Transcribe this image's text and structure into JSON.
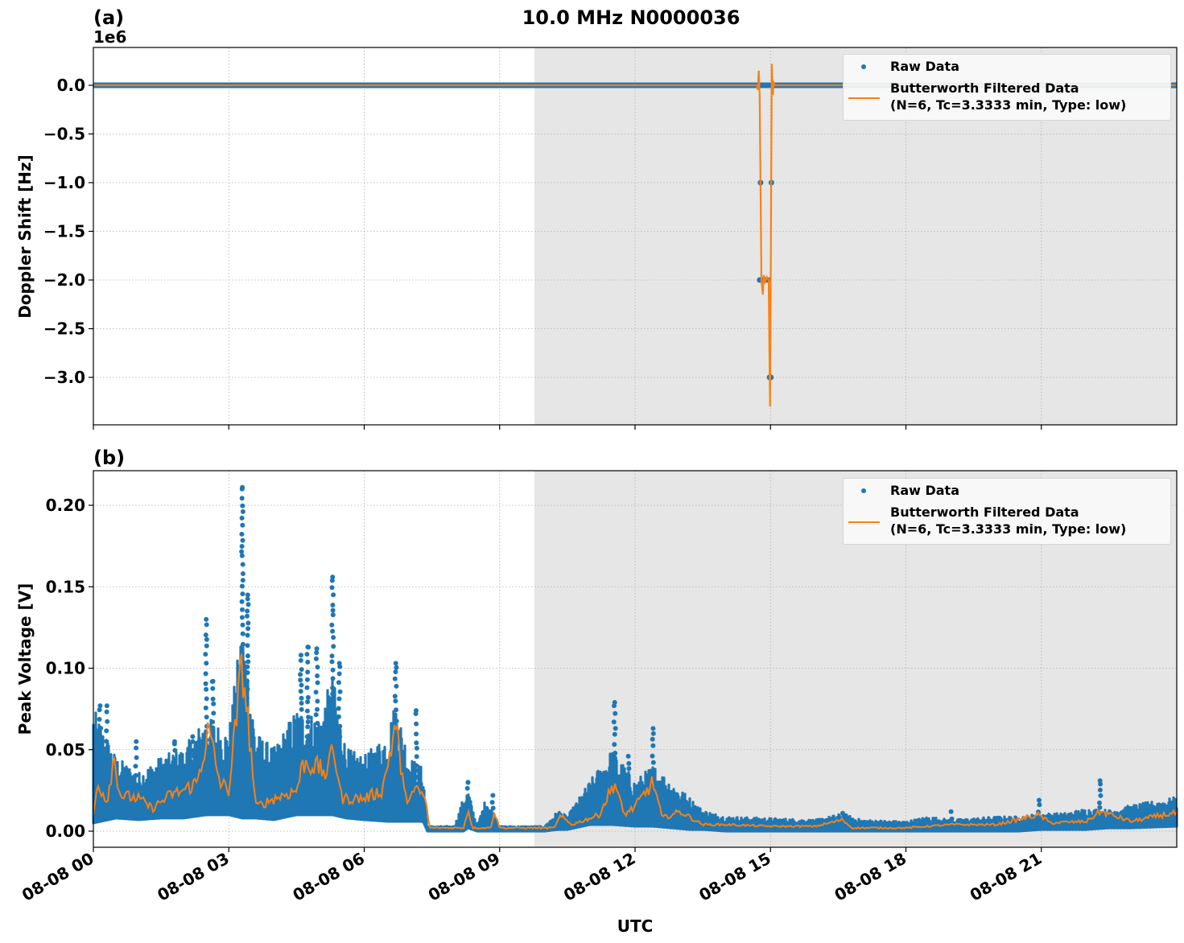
{
  "figure": {
    "title": "10.0 MHz N0000036",
    "xlabel": "UTC",
    "colors": {
      "raw": "#1f77b4",
      "filtered": "#ff7f0e",
      "shade": "#e6e6e6",
      "grid": "#b0b0b0",
      "axes": "#000000"
    }
  },
  "panels": [
    {
      "label": "(a)",
      "offset_text": "1e6",
      "ylabel": "Doppler Shift [Hz]",
      "legend": {
        "raw_label": "Raw Data",
        "filtered_label_line1": "Butterworth Filtered Data",
        "filtered_label_line2": "(N=6, Tc=3.3333 min, Type: low)"
      }
    },
    {
      "label": "(b)",
      "ylabel": "Peak Voltage [V]",
      "legend": {
        "raw_label": "Raw Data",
        "filtered_label_line1": "Butterworth Filtered Data",
        "filtered_label_line2": "(N=6, Tc=3.3333 min, Type: low)"
      }
    }
  ],
  "chart_data": [
    {
      "type": "line",
      "title": "10.0 MHz N0000036",
      "panel_label": "(a)",
      "xlabel": "UTC",
      "ylabel": "Doppler Shift [Hz]",
      "y_scale_offset": "1e6",
      "xlim_hours": [
        0,
        24
      ],
      "ylim": [
        -3.5,
        0.4
      ],
      "x_ticks": [
        "08-08 00",
        "08-08 03",
        "08-08 06",
        "08-08 09",
        "08-08 12",
        "08-08 15",
        "08-08 18",
        "08-08 21"
      ],
      "x_tick_hours": [
        0,
        3,
        6,
        9,
        12,
        15,
        18,
        21
      ],
      "y_ticks": [
        0.0,
        -0.5,
        -1.0,
        -1.5,
        -2.0,
        -2.5,
        -3.0
      ],
      "y_tick_labels": [
        "0.0",
        "−0.5",
        "−1.0",
        "−1.5",
        "−2.0",
        "−2.5",
        "−3.0"
      ],
      "grid": true,
      "shaded_region_hours": [
        9.77,
        24
      ],
      "legend_position": "upper right",
      "series": [
        {
          "name": "Raw Data",
          "style": "scatter",
          "baseline": 0.0,
          "outlier_points": [
            {
              "x": 14.75,
              "y": 0.0
            },
            {
              "x": 15.05,
              "y": 0.0
            },
            {
              "x": 14.78,
              "y": -1.0
            },
            {
              "x": 15.02,
              "y": -1.0
            },
            {
              "x": 14.76,
              "y": -2.0
            },
            {
              "x": 14.82,
              "y": -2.0
            },
            {
              "x": 14.88,
              "y": -2.0
            },
            {
              "x": 14.94,
              "y": -2.0
            },
            {
              "x": 14.98,
              "y": -3.0
            },
            {
              "x": 15.01,
              "y": -3.0
            }
          ]
        },
        {
          "name": "Butterworth Filtered Data (N=6, Tc=3.3333 min, Type: low)",
          "style": "line",
          "baseline": 0.0,
          "excursion_points": [
            {
              "x": 14.7,
              "y": 0.0
            },
            {
              "x": 14.72,
              "y": -0.05
            },
            {
              "x": 14.74,
              "y": 0.15
            },
            {
              "x": 14.76,
              "y": -0.1
            },
            {
              "x": 14.8,
              "y": -2.0
            },
            {
              "x": 14.83,
              "y": -2.15
            },
            {
              "x": 14.85,
              "y": -1.95
            },
            {
              "x": 14.88,
              "y": -2.02
            },
            {
              "x": 14.92,
              "y": -1.97
            },
            {
              "x": 14.96,
              "y": -2.0
            },
            {
              "x": 14.99,
              "y": -3.3
            },
            {
              "x": 15.03,
              "y": 0.22
            },
            {
              "x": 15.05,
              "y": -0.1
            },
            {
              "x": 15.07,
              "y": 0.03
            },
            {
              "x": 15.1,
              "y": 0.0
            }
          ]
        }
      ]
    },
    {
      "type": "line",
      "panel_label": "(b)",
      "xlabel": "UTC",
      "ylabel": "Peak Voltage [V]",
      "xlim_hours": [
        0,
        24
      ],
      "ylim": [
        -0.01,
        0.22
      ],
      "x_ticks": [
        "08-08 00",
        "08-08 03",
        "08-08 06",
        "08-08 09",
        "08-08 12",
        "08-08 15",
        "08-08 18",
        "08-08 21"
      ],
      "x_tick_hours": [
        0,
        3,
        6,
        9,
        12,
        15,
        18,
        21
      ],
      "y_ticks": [
        0.0,
        0.05,
        0.1,
        0.15,
        0.2
      ],
      "y_tick_labels": [
        "0.00",
        "0.05",
        "0.10",
        "0.15",
        "0.20"
      ],
      "grid": true,
      "shaded_region_hours": [
        9.77,
        24
      ],
      "legend_position": "upper right",
      "series": [
        {
          "name": "Raw Data",
          "style": "scatter",
          "envelope_hours": [
            0,
            0.5,
            1.0,
            1.5,
            2.0,
            2.5,
            3.0,
            3.3,
            3.6,
            4.0,
            4.5,
            5.0,
            5.3,
            5.6,
            6.0,
            6.5,
            6.7,
            7.0,
            7.3,
            7.4,
            8.0,
            8.2,
            8.3,
            8.5,
            8.7,
            8.85,
            9.0,
            10.0,
            10.3,
            10.5,
            11.0,
            11.5,
            12.0,
            12.4,
            12.8,
            13.2,
            13.5,
            14.0,
            15.0,
            16.0,
            16.6,
            17.0,
            18.0,
            18.5,
            19.0,
            20.0,
            20.5,
            21.0,
            21.5,
            22.0,
            22.5,
            23.0,
            24.0
          ],
          "envelope_upper": [
            0.075,
            0.045,
            0.035,
            0.045,
            0.05,
            0.07,
            0.06,
            0.13,
            0.06,
            0.05,
            0.075,
            0.07,
            0.095,
            0.05,
            0.045,
            0.06,
            0.08,
            0.045,
            0.038,
            0.002,
            0.002,
            0.02,
            0.025,
            0.002,
            0.02,
            0.012,
            0.002,
            0.002,
            0.012,
            0.008,
            0.03,
            0.05,
            0.03,
            0.04,
            0.03,
            0.02,
            0.012,
            0.008,
            0.007,
            0.006,
            0.01,
            0.006,
            0.005,
            0.008,
            0.006,
            0.008,
            0.008,
            0.01,
            0.01,
            0.013,
            0.012,
            0.015,
            0.02
          ],
          "envelope_lower": [
            0.005,
            0.008,
            0.007,
            0.008,
            0.008,
            0.01,
            0.01,
            0.008,
            0.008,
            0.007,
            0.01,
            0.01,
            0.01,
            0.008,
            0.007,
            0.006,
            0.006,
            0.006,
            0.006,
            0.0,
            0.0,
            0.0,
            0.002,
            0.0,
            0.0,
            0.0,
            0.0,
            0.0,
            0.001,
            0.001,
            0.004,
            0.004,
            0.003,
            0.003,
            0.002,
            0.001,
            0.001,
            0.0,
            0.0,
            0.0,
            0.0,
            0.0,
            0.0,
            0.0,
            0.0,
            0.0,
            0.0,
            0.001,
            0.001,
            0.001,
            0.002,
            0.002,
            0.003
          ],
          "spikes": [
            {
              "x": 0.15,
              "y": 0.077
            },
            {
              "x": 0.3,
              "y": 0.077
            },
            {
              "x": 0.95,
              "y": 0.055
            },
            {
              "x": 1.8,
              "y": 0.055
            },
            {
              "x": 2.2,
              "y": 0.058
            },
            {
              "x": 2.5,
              "y": 0.13
            },
            {
              "x": 2.65,
              "y": 0.092
            },
            {
              "x": 3.1,
              "y": 0.06
            },
            {
              "x": 3.3,
              "y": 0.211
            },
            {
              "x": 3.42,
              "y": 0.145
            },
            {
              "x": 4.6,
              "y": 0.108
            },
            {
              "x": 4.75,
              "y": 0.113
            },
            {
              "x": 4.95,
              "y": 0.112
            },
            {
              "x": 5.3,
              "y": 0.156
            },
            {
              "x": 5.45,
              "y": 0.103
            },
            {
              "x": 6.7,
              "y": 0.103
            },
            {
              "x": 7.15,
              "y": 0.074
            },
            {
              "x": 8.3,
              "y": 0.03
            },
            {
              "x": 8.85,
              "y": 0.022
            },
            {
              "x": 11.55,
              "y": 0.079
            },
            {
              "x": 11.85,
              "y": 0.046
            },
            {
              "x": 12.4,
              "y": 0.063
            },
            {
              "x": 16.6,
              "y": 0.011
            },
            {
              "x": 19.0,
              "y": 0.012
            },
            {
              "x": 20.95,
              "y": 0.019
            },
            {
              "x": 22.3,
              "y": 0.031
            }
          ]
        },
        {
          "name": "Butterworth Filtered Data (N=6, Tc=3.3333 min, Type: low)",
          "style": "line",
          "key_points": [
            {
              "x": 0.0,
              "y": 0.01
            },
            {
              "x": 0.1,
              "y": 0.03
            },
            {
              "x": 0.3,
              "y": 0.018
            },
            {
              "x": 0.45,
              "y": 0.045
            },
            {
              "x": 0.6,
              "y": 0.022
            },
            {
              "x": 1.0,
              "y": 0.02
            },
            {
              "x": 1.3,
              "y": 0.014
            },
            {
              "x": 1.7,
              "y": 0.022
            },
            {
              "x": 2.0,
              "y": 0.025
            },
            {
              "x": 2.3,
              "y": 0.03
            },
            {
              "x": 2.55,
              "y": 0.062
            },
            {
              "x": 2.8,
              "y": 0.03
            },
            {
              "x": 3.0,
              "y": 0.025
            },
            {
              "x": 3.3,
              "y": 0.103
            },
            {
              "x": 3.45,
              "y": 0.06
            },
            {
              "x": 3.6,
              "y": 0.015
            },
            {
              "x": 4.0,
              "y": 0.02
            },
            {
              "x": 4.5,
              "y": 0.025
            },
            {
              "x": 4.65,
              "y": 0.042
            },
            {
              "x": 4.9,
              "y": 0.04
            },
            {
              "x": 5.2,
              "y": 0.035
            },
            {
              "x": 5.3,
              "y": 0.055
            },
            {
              "x": 5.5,
              "y": 0.02
            },
            {
              "x": 6.0,
              "y": 0.02
            },
            {
              "x": 6.4,
              "y": 0.025
            },
            {
              "x": 6.7,
              "y": 0.066
            },
            {
              "x": 6.9,
              "y": 0.02
            },
            {
              "x": 7.2,
              "y": 0.025
            },
            {
              "x": 7.35,
              "y": 0.02
            },
            {
              "x": 7.45,
              "y": 0.002
            },
            {
              "x": 8.2,
              "y": 0.002
            },
            {
              "x": 8.3,
              "y": 0.013
            },
            {
              "x": 8.4,
              "y": 0.002
            },
            {
              "x": 8.8,
              "y": 0.002
            },
            {
              "x": 8.88,
              "y": 0.012
            },
            {
              "x": 9.0,
              "y": 0.002
            },
            {
              "x": 10.2,
              "y": 0.002
            },
            {
              "x": 10.35,
              "y": 0.009
            },
            {
              "x": 10.6,
              "y": 0.004
            },
            {
              "x": 11.2,
              "y": 0.01
            },
            {
              "x": 11.55,
              "y": 0.03
            },
            {
              "x": 11.75,
              "y": 0.01
            },
            {
              "x": 12.0,
              "y": 0.015
            },
            {
              "x": 12.4,
              "y": 0.03
            },
            {
              "x": 12.6,
              "y": 0.008
            },
            {
              "x": 13.0,
              "y": 0.012
            },
            {
              "x": 13.5,
              "y": 0.004
            },
            {
              "x": 14.0,
              "y": 0.004
            },
            {
              "x": 15.0,
              "y": 0.003
            },
            {
              "x": 16.0,
              "y": 0.003
            },
            {
              "x": 16.6,
              "y": 0.007
            },
            {
              "x": 16.8,
              "y": 0.002
            },
            {
              "x": 18.0,
              "y": 0.002
            },
            {
              "x": 19.0,
              "y": 0.004
            },
            {
              "x": 20.0,
              "y": 0.004
            },
            {
              "x": 20.95,
              "y": 0.01
            },
            {
              "x": 21.2,
              "y": 0.005
            },
            {
              "x": 22.0,
              "y": 0.006
            },
            {
              "x": 22.3,
              "y": 0.012
            },
            {
              "x": 23.0,
              "y": 0.006
            },
            {
              "x": 23.7,
              "y": 0.01
            },
            {
              "x": 24.0,
              "y": 0.011
            }
          ]
        }
      ]
    }
  ]
}
